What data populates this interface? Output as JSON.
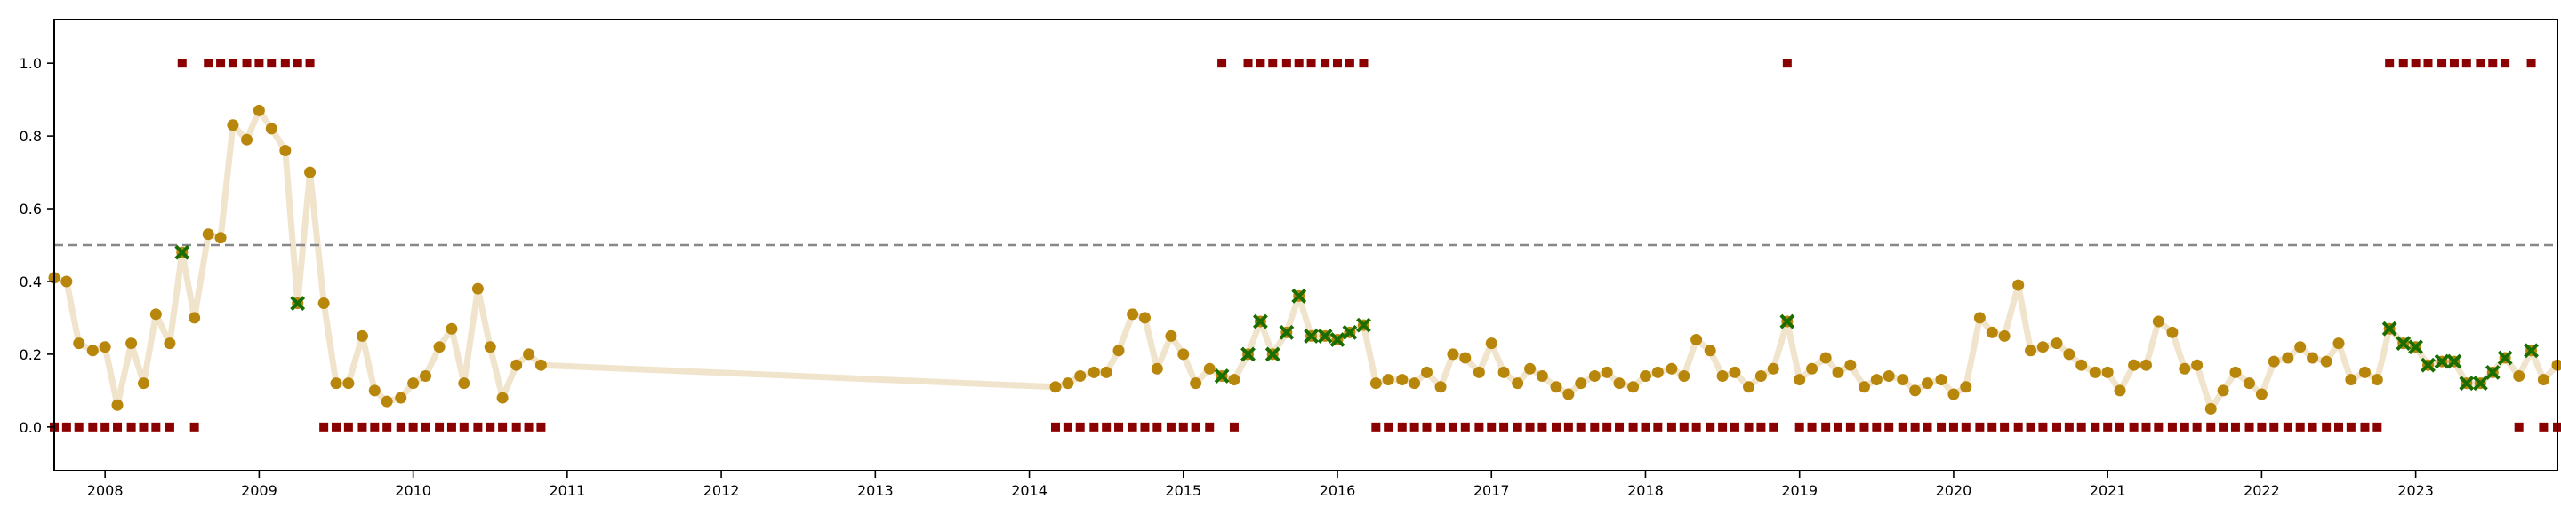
{
  "chart_data": {
    "type": "scatter",
    "title": "",
    "xlabel": "",
    "ylabel": "",
    "xlim": [
      2007.67,
      2023.92
    ],
    "ylim": [
      -0.12,
      1.12
    ],
    "grid": false,
    "legend": "none",
    "x_ticks": [
      "2008",
      "2009",
      "2010",
      "2011",
      "2012",
      "2013",
      "2014",
      "2015",
      "2016",
      "2017",
      "2018",
      "2019",
      "2020",
      "2021",
      "2022",
      "2023"
    ],
    "y_ticks": [
      "0.0",
      "0.2",
      "0.4",
      "0.6",
      "0.8",
      "1.0"
    ],
    "threshold": 0.5,
    "colors": {
      "line": "#f0e4cc",
      "point": "#b8860b",
      "anomaly": "#1a6e00",
      "marker": "#8b0000",
      "threshold": "#888888"
    },
    "series": [
      {
        "values": [
          [
            2007.67,
            0.41
          ],
          [
            2007.75,
            0.4
          ],
          [
            2007.83,
            0.23
          ],
          [
            2007.92,
            0.21
          ],
          [
            2008.0,
            0.22
          ],
          [
            2008.08,
            0.06
          ],
          [
            2008.17,
            0.23
          ],
          [
            2008.25,
            0.12
          ],
          [
            2008.33,
            0.31
          ],
          [
            2008.42,
            0.23
          ],
          [
            2008.5,
            0.48
          ],
          [
            2008.58,
            0.3
          ],
          [
            2008.67,
            0.53
          ],
          [
            2008.75,
            0.52
          ],
          [
            2008.83,
            0.83
          ],
          [
            2008.92,
            0.79
          ],
          [
            2009.0,
            0.87
          ],
          [
            2009.08,
            0.82
          ],
          [
            2009.17,
            0.76
          ],
          [
            2009.25,
            0.34
          ],
          [
            2009.33,
            0.7
          ],
          [
            2009.42,
            0.34
          ],
          [
            2009.5,
            0.12
          ],
          [
            2009.58,
            0.12
          ],
          [
            2009.67,
            0.25
          ],
          [
            2009.75,
            0.1
          ],
          [
            2009.83,
            0.07
          ],
          [
            2009.92,
            0.08
          ],
          [
            2010.0,
            0.12
          ],
          [
            2010.08,
            0.14
          ],
          [
            2010.17,
            0.22
          ],
          [
            2010.25,
            0.27
          ],
          [
            2010.33,
            0.12
          ],
          [
            2010.42,
            0.38
          ],
          [
            2010.5,
            0.22
          ],
          [
            2010.58,
            0.08
          ],
          [
            2010.67,
            0.17
          ],
          [
            2010.75,
            0.2
          ],
          [
            2010.83,
            0.17
          ],
          [
            2014.17,
            0.11
          ],
          [
            2014.25,
            0.12
          ],
          [
            2014.33,
            0.14
          ],
          [
            2014.42,
            0.15
          ],
          [
            2014.5,
            0.15
          ],
          [
            2014.58,
            0.21
          ],
          [
            2014.67,
            0.31
          ],
          [
            2014.75,
            0.3
          ],
          [
            2014.83,
            0.16
          ],
          [
            2014.92,
            0.25
          ],
          [
            2015.0,
            0.2
          ],
          [
            2015.08,
            0.12
          ],
          [
            2015.17,
            0.16
          ],
          [
            2015.25,
            0.14
          ],
          [
            2015.33,
            0.13
          ],
          [
            2015.42,
            0.2
          ],
          [
            2015.5,
            0.29
          ],
          [
            2015.58,
            0.2
          ],
          [
            2015.67,
            0.26
          ],
          [
            2015.75,
            0.36
          ],
          [
            2015.83,
            0.25
          ],
          [
            2015.92,
            0.25
          ],
          [
            2016.0,
            0.24
          ],
          [
            2016.08,
            0.26
          ],
          [
            2016.17,
            0.28
          ],
          [
            2016.25,
            0.12
          ],
          [
            2016.33,
            0.13
          ],
          [
            2016.42,
            0.13
          ],
          [
            2016.5,
            0.12
          ],
          [
            2016.58,
            0.15
          ],
          [
            2016.67,
            0.11
          ],
          [
            2016.75,
            0.2
          ],
          [
            2016.83,
            0.19
          ],
          [
            2016.92,
            0.15
          ],
          [
            2017.0,
            0.23
          ],
          [
            2017.08,
            0.15
          ],
          [
            2017.17,
            0.12
          ],
          [
            2017.25,
            0.16
          ],
          [
            2017.33,
            0.14
          ],
          [
            2017.42,
            0.11
          ],
          [
            2017.5,
            0.09
          ],
          [
            2017.58,
            0.12
          ],
          [
            2017.67,
            0.14
          ],
          [
            2017.75,
            0.15
          ],
          [
            2017.83,
            0.12
          ],
          [
            2017.92,
            0.11
          ],
          [
            2018.0,
            0.14
          ],
          [
            2018.08,
            0.15
          ],
          [
            2018.17,
            0.16
          ],
          [
            2018.25,
            0.14
          ],
          [
            2018.33,
            0.24
          ],
          [
            2018.42,
            0.21
          ],
          [
            2018.5,
            0.14
          ],
          [
            2018.58,
            0.15
          ],
          [
            2018.67,
            0.11
          ],
          [
            2018.75,
            0.14
          ],
          [
            2018.83,
            0.16
          ],
          [
            2018.92,
            0.29
          ],
          [
            2019.0,
            0.13
          ],
          [
            2019.08,
            0.16
          ],
          [
            2019.17,
            0.19
          ],
          [
            2019.25,
            0.15
          ],
          [
            2019.33,
            0.17
          ],
          [
            2019.42,
            0.11
          ],
          [
            2019.5,
            0.13
          ],
          [
            2019.58,
            0.14
          ],
          [
            2019.67,
            0.13
          ],
          [
            2019.75,
            0.1
          ],
          [
            2019.83,
            0.12
          ],
          [
            2019.92,
            0.13
          ],
          [
            2020.0,
            0.09
          ],
          [
            2020.08,
            0.11
          ],
          [
            2020.17,
            0.3
          ],
          [
            2020.25,
            0.26
          ],
          [
            2020.33,
            0.25
          ],
          [
            2020.42,
            0.39
          ],
          [
            2020.5,
            0.21
          ],
          [
            2020.58,
            0.22
          ],
          [
            2020.67,
            0.23
          ],
          [
            2020.75,
            0.2
          ],
          [
            2020.83,
            0.17
          ],
          [
            2020.92,
            0.15
          ],
          [
            2021.0,
            0.15
          ],
          [
            2021.08,
            0.1
          ],
          [
            2021.17,
            0.17
          ],
          [
            2021.25,
            0.17
          ],
          [
            2021.33,
            0.29
          ],
          [
            2021.42,
            0.26
          ],
          [
            2021.5,
            0.16
          ],
          [
            2021.58,
            0.17
          ],
          [
            2021.67,
            0.05
          ],
          [
            2021.75,
            0.1
          ],
          [
            2021.83,
            0.15
          ],
          [
            2021.92,
            0.12
          ],
          [
            2022.0,
            0.09
          ],
          [
            2022.08,
            0.18
          ],
          [
            2022.17,
            0.19
          ],
          [
            2022.25,
            0.22
          ],
          [
            2022.33,
            0.19
          ],
          [
            2022.42,
            0.18
          ],
          [
            2022.5,
            0.23
          ],
          [
            2022.58,
            0.13
          ],
          [
            2022.67,
            0.15
          ],
          [
            2022.75,
            0.13
          ],
          [
            2022.83,
            0.27
          ],
          [
            2022.92,
            0.23
          ],
          [
            2023.0,
            0.22
          ],
          [
            2023.08,
            0.17
          ],
          [
            2023.17,
            0.18
          ],
          [
            2023.25,
            0.18
          ],
          [
            2023.33,
            0.12
          ],
          [
            2023.42,
            0.12
          ],
          [
            2023.5,
            0.15
          ],
          [
            2023.58,
            0.19
          ],
          [
            2023.67,
            0.14
          ],
          [
            2023.75,
            0.21
          ],
          [
            2023.83,
            0.13
          ],
          [
            2023.92,
            0.17
          ]
        ]
      }
    ],
    "anomaly_points": [
      [
        2008.5,
        0.48
      ],
      [
        2009.25,
        0.34
      ],
      [
        2015.25,
        0.14
      ],
      [
        2015.42,
        0.2
      ],
      [
        2015.5,
        0.29
      ],
      [
        2015.58,
        0.2
      ],
      [
        2015.67,
        0.26
      ],
      [
        2015.75,
        0.36
      ],
      [
        2015.83,
        0.25
      ],
      [
        2015.92,
        0.25
      ],
      [
        2016.0,
        0.24
      ],
      [
        2016.08,
        0.26
      ],
      [
        2016.17,
        0.28
      ],
      [
        2018.92,
        0.29
      ],
      [
        2022.83,
        0.27
      ],
      [
        2022.92,
        0.23
      ],
      [
        2023.0,
        0.22
      ],
      [
        2023.08,
        0.17
      ],
      [
        2023.17,
        0.18
      ],
      [
        2023.25,
        0.18
      ],
      [
        2023.33,
        0.12
      ],
      [
        2023.42,
        0.12
      ],
      [
        2023.5,
        0.15
      ],
      [
        2023.58,
        0.19
      ],
      [
        2023.75,
        0.21
      ]
    ],
    "label_points": [
      [
        2007.67,
        0
      ],
      [
        2007.75,
        0
      ],
      [
        2007.83,
        0
      ],
      [
        2007.92,
        0
      ],
      [
        2008.0,
        0
      ],
      [
        2008.08,
        0
      ],
      [
        2008.17,
        0
      ],
      [
        2008.25,
        0
      ],
      [
        2008.33,
        0
      ],
      [
        2008.42,
        0
      ],
      [
        2008.5,
        1
      ],
      [
        2008.58,
        0
      ],
      [
        2008.67,
        1
      ],
      [
        2008.75,
        1
      ],
      [
        2008.83,
        1
      ],
      [
        2008.92,
        1
      ],
      [
        2009.0,
        1
      ],
      [
        2009.08,
        1
      ],
      [
        2009.17,
        1
      ],
      [
        2009.25,
        1
      ],
      [
        2009.33,
        1
      ],
      [
        2009.42,
        0
      ],
      [
        2009.5,
        0
      ],
      [
        2009.58,
        0
      ],
      [
        2009.67,
        0
      ],
      [
        2009.75,
        0
      ],
      [
        2009.83,
        0
      ],
      [
        2009.92,
        0
      ],
      [
        2010.0,
        0
      ],
      [
        2010.08,
        0
      ],
      [
        2010.17,
        0
      ],
      [
        2010.25,
        0
      ],
      [
        2010.33,
        0
      ],
      [
        2010.42,
        0
      ],
      [
        2010.5,
        0
      ],
      [
        2010.58,
        0
      ],
      [
        2010.67,
        0
      ],
      [
        2010.75,
        0
      ],
      [
        2010.83,
        0
      ],
      [
        2014.17,
        0
      ],
      [
        2014.25,
        0
      ],
      [
        2014.33,
        0
      ],
      [
        2014.42,
        0
      ],
      [
        2014.5,
        0
      ],
      [
        2014.58,
        0
      ],
      [
        2014.67,
        0
      ],
      [
        2014.75,
        0
      ],
      [
        2014.83,
        0
      ],
      [
        2014.92,
        0
      ],
      [
        2015.0,
        0
      ],
      [
        2015.08,
        0
      ],
      [
        2015.17,
        0
      ],
      [
        2015.25,
        1
      ],
      [
        2015.33,
        0
      ],
      [
        2015.42,
        1
      ],
      [
        2015.5,
        1
      ],
      [
        2015.58,
        1
      ],
      [
        2015.67,
        1
      ],
      [
        2015.75,
        1
      ],
      [
        2015.83,
        1
      ],
      [
        2015.92,
        1
      ],
      [
        2016.0,
        1
      ],
      [
        2016.08,
        1
      ],
      [
        2016.17,
        1
      ],
      [
        2016.25,
        0
      ],
      [
        2016.33,
        0
      ],
      [
        2016.42,
        0
      ],
      [
        2016.5,
        0
      ],
      [
        2016.58,
        0
      ],
      [
        2016.67,
        0
      ],
      [
        2016.75,
        0
      ],
      [
        2016.83,
        0
      ],
      [
        2016.92,
        0
      ],
      [
        2017.0,
        0
      ],
      [
        2017.08,
        0
      ],
      [
        2017.17,
        0
      ],
      [
        2017.25,
        0
      ],
      [
        2017.33,
        0
      ],
      [
        2017.42,
        0
      ],
      [
        2017.5,
        0
      ],
      [
        2017.58,
        0
      ],
      [
        2017.67,
        0
      ],
      [
        2017.75,
        0
      ],
      [
        2017.83,
        0
      ],
      [
        2017.92,
        0
      ],
      [
        2018.0,
        0
      ],
      [
        2018.08,
        0
      ],
      [
        2018.17,
        0
      ],
      [
        2018.25,
        0
      ],
      [
        2018.33,
        0
      ],
      [
        2018.42,
        0
      ],
      [
        2018.5,
        0
      ],
      [
        2018.58,
        0
      ],
      [
        2018.67,
        0
      ],
      [
        2018.75,
        0
      ],
      [
        2018.83,
        0
      ],
      [
        2018.92,
        1
      ],
      [
        2019.0,
        0
      ],
      [
        2019.08,
        0
      ],
      [
        2019.17,
        0
      ],
      [
        2019.25,
        0
      ],
      [
        2019.33,
        0
      ],
      [
        2019.42,
        0
      ],
      [
        2019.5,
        0
      ],
      [
        2019.58,
        0
      ],
      [
        2019.67,
        0
      ],
      [
        2019.75,
        0
      ],
      [
        2019.83,
        0
      ],
      [
        2019.92,
        0
      ],
      [
        2020.0,
        0
      ],
      [
        2020.08,
        0
      ],
      [
        2020.17,
        0
      ],
      [
        2020.25,
        0
      ],
      [
        2020.33,
        0
      ],
      [
        2020.42,
        0
      ],
      [
        2020.5,
        0
      ],
      [
        2020.58,
        0
      ],
      [
        2020.67,
        0
      ],
      [
        2020.75,
        0
      ],
      [
        2020.83,
        0
      ],
      [
        2020.92,
        0
      ],
      [
        2021.0,
        0
      ],
      [
        2021.08,
        0
      ],
      [
        2021.17,
        0
      ],
      [
        2021.25,
        0
      ],
      [
        2021.33,
        0
      ],
      [
        2021.42,
        0
      ],
      [
        2021.5,
        0
      ],
      [
        2021.58,
        0
      ],
      [
        2021.67,
        0
      ],
      [
        2021.75,
        0
      ],
      [
        2021.83,
        0
      ],
      [
        2021.92,
        0
      ],
      [
        2022.0,
        0
      ],
      [
        2022.08,
        0
      ],
      [
        2022.17,
        0
      ],
      [
        2022.25,
        0
      ],
      [
        2022.33,
        0
      ],
      [
        2022.42,
        0
      ],
      [
        2022.5,
        0
      ],
      [
        2022.58,
        0
      ],
      [
        2022.67,
        0
      ],
      [
        2022.75,
        0
      ],
      [
        2022.83,
        1
      ],
      [
        2022.92,
        1
      ],
      [
        2023.0,
        1
      ],
      [
        2023.08,
        1
      ],
      [
        2023.17,
        1
      ],
      [
        2023.25,
        1
      ],
      [
        2023.33,
        1
      ],
      [
        2023.42,
        1
      ],
      [
        2023.5,
        1
      ],
      [
        2023.58,
        1
      ],
      [
        2023.67,
        0
      ],
      [
        2023.75,
        1
      ],
      [
        2023.83,
        0
      ],
      [
        2023.92,
        0
      ]
    ]
  }
}
